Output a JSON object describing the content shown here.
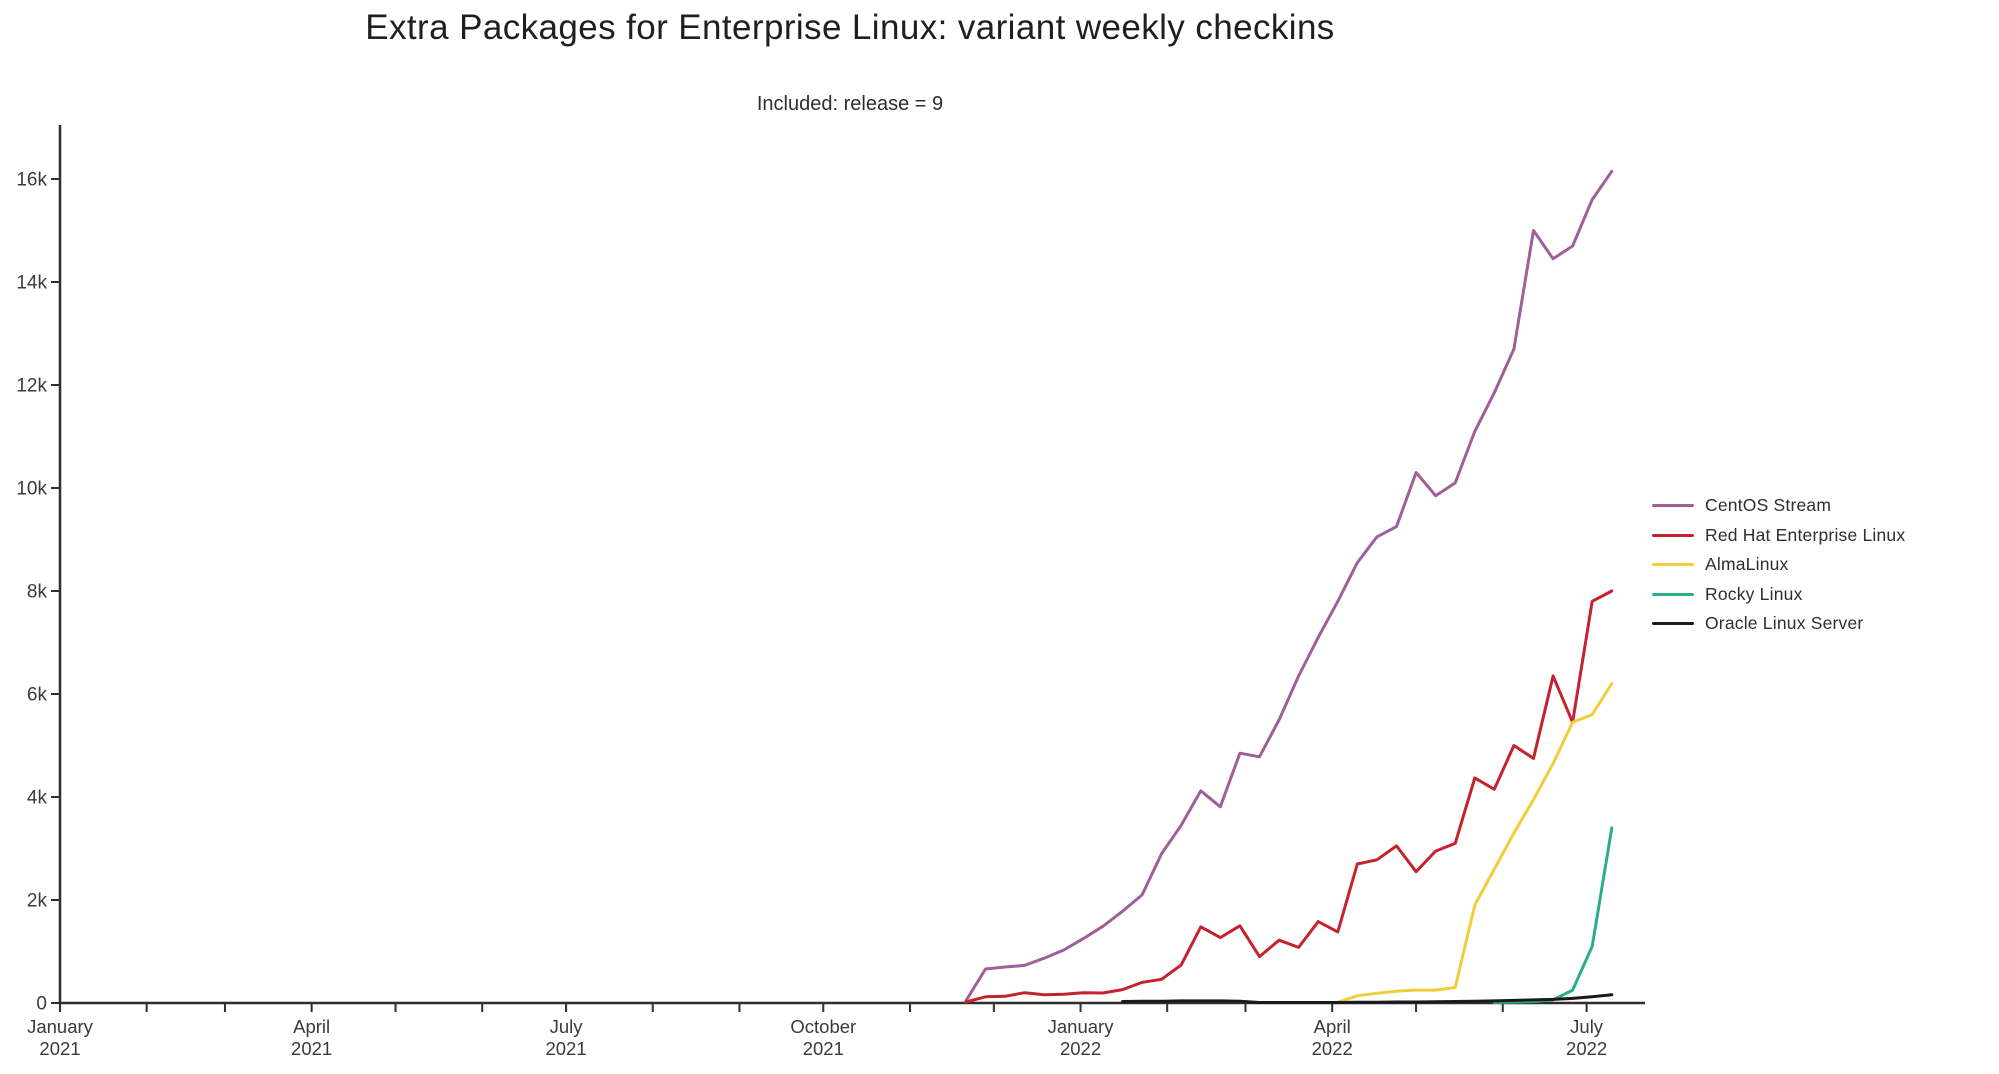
{
  "page": {
    "title": "Extra Packages for Enterprise Linux: variant weekly checkins",
    "subtitle": "Included: release = 9"
  },
  "chart_data": {
    "type": "line",
    "title": "Extra Packages for Enterprise Linux: variant weekly checkins",
    "subtitle": "Included: release = 9",
    "xlabel": "",
    "ylabel": "",
    "grid": false,
    "legend_position": "right",
    "ylim": [
      0,
      16500
    ],
    "x_range": [
      "2021-01-01",
      "2022-07-23"
    ],
    "x": [
      "2021-11-21",
      "2021-11-28",
      "2021-12-05",
      "2021-12-12",
      "2021-12-19",
      "2021-12-26",
      "2022-01-02",
      "2022-01-09",
      "2022-01-16",
      "2022-01-23",
      "2022-01-30",
      "2022-02-06",
      "2022-02-13",
      "2022-02-20",
      "2022-02-27",
      "2022-03-06",
      "2022-03-13",
      "2022-03-20",
      "2022-03-27",
      "2022-04-03",
      "2022-04-10",
      "2022-04-17",
      "2022-04-24",
      "2022-05-01",
      "2022-05-08",
      "2022-05-15",
      "2022-05-22",
      "2022-05-29",
      "2022-06-05",
      "2022-06-12",
      "2022-06-19",
      "2022-06-26",
      "2022-07-03",
      "2022-07-10"
    ],
    "series": [
      {
        "name": "CentOS Stream",
        "color": "#9F5F99",
        "values": [
          40,
          660,
          700,
          730,
          870,
          1030,
          1250,
          1490,
          1780,
          2100,
          2900,
          3450,
          4120,
          3810,
          4850,
          4780,
          5500,
          6350,
          7100,
          7800,
          8550,
          9050,
          9250,
          10300,
          9850,
          10100,
          11100,
          11850,
          12700,
          15000,
          14450,
          14700,
          15600,
          16150
        ]
      },
      {
        "name": "Red Hat Enterprise Linux",
        "color": "#C4222E",
        "values": [
          20,
          120,
          130,
          200,
          160,
          170,
          200,
          195,
          260,
          400,
          460,
          740,
          1480,
          1270,
          1500,
          900,
          1220,
          1080,
          1580,
          1380,
          2700,
          2780,
          3050,
          2550,
          2950,
          3100,
          4370,
          4150,
          5000,
          4750,
          6350,
          5450,
          7800,
          8000
        ]
      },
      {
        "name": "AlmaLinux",
        "color": "#EFCE3B",
        "values": [
          null,
          null,
          null,
          null,
          null,
          null,
          null,
          null,
          null,
          null,
          null,
          null,
          null,
          null,
          null,
          null,
          null,
          null,
          null,
          15,
          140,
          190,
          230,
          250,
          250,
          300,
          1900,
          2600,
          3300,
          3950,
          4650,
          5450,
          5600,
          6200
        ]
      },
      {
        "name": "Rocky Linux",
        "color": "#2BAD8C",
        "values": [
          null,
          null,
          null,
          null,
          null,
          null,
          null,
          null,
          null,
          null,
          null,
          null,
          null,
          null,
          null,
          null,
          null,
          null,
          null,
          null,
          null,
          null,
          null,
          null,
          null,
          null,
          null,
          10,
          20,
          30,
          60,
          250,
          1100,
          3400
        ]
      },
      {
        "name": "Oracle Linux Server",
        "color": "#1A1A1A",
        "values": [
          null,
          null,
          null,
          null,
          null,
          null,
          null,
          null,
          30,
          35,
          35,
          40,
          40,
          40,
          35,
          10,
          10,
          10,
          10,
          10,
          15,
          15,
          20,
          20,
          25,
          30,
          35,
          40,
          50,
          60,
          70,
          90,
          120,
          160
        ]
      }
    ],
    "y_ticks": [
      {
        "value": 0,
        "label": "0"
      },
      {
        "value": 2000,
        "label": "2k"
      },
      {
        "value": 4000,
        "label": "4k"
      },
      {
        "value": 6000,
        "label": "6k"
      },
      {
        "value": 8000,
        "label": "8k"
      },
      {
        "value": 10000,
        "label": "10k"
      },
      {
        "value": 12000,
        "label": "12k"
      },
      {
        "value": 14000,
        "label": "14k"
      },
      {
        "value": 16000,
        "label": "16k"
      }
    ],
    "x_ticks_major": [
      {
        "date": "2021-01-01",
        "line1": "January",
        "line2": "2021"
      },
      {
        "date": "2021-04-01",
        "line1": "April",
        "line2": "2021"
      },
      {
        "date": "2021-07-01",
        "line1": "July",
        "line2": "2021"
      },
      {
        "date": "2021-10-01",
        "line1": "October",
        "line2": "2021"
      },
      {
        "date": "2022-01-01",
        "line1": "January",
        "line2": "2022"
      },
      {
        "date": "2022-04-01",
        "line1": "April",
        "line2": "2022"
      },
      {
        "date": "2022-07-01",
        "line1": "July",
        "line2": "2022"
      }
    ],
    "x_ticks_minor": [
      "2021-01-01",
      "2021-02-01",
      "2021-03-01",
      "2021-04-01",
      "2021-05-01",
      "2021-06-01",
      "2021-07-01",
      "2021-08-01",
      "2021-09-01",
      "2021-10-01",
      "2021-11-01",
      "2021-12-01",
      "2022-01-01",
      "2022-02-01",
      "2022-03-01",
      "2022-04-01",
      "2022-05-01",
      "2022-06-01",
      "2022-07-01"
    ]
  },
  "style": {
    "axis_color": "#2f2f2f",
    "tick_label_color": "#3a3a3a",
    "background": "#ffffff"
  }
}
